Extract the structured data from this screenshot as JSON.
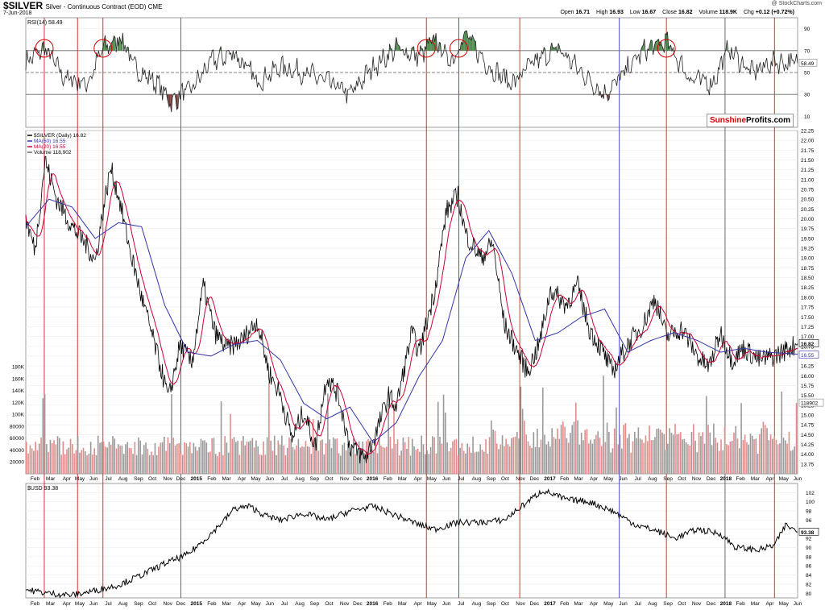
{
  "header": {
    "symbol": "$SILVER",
    "subtitle": "Silver - Continuous Contract (EOD)",
    "exchange": "CME",
    "date": "7-Jun-2018",
    "source": "@ StockCharts.com",
    "open_label": "Open",
    "open": "16.71",
    "high_label": "High",
    "high": "16.93",
    "low_label": "Low",
    "low": "16.67",
    "close_label": "Close",
    "close": "16.82",
    "volume_label": "Volume",
    "volume": "118.9K",
    "chg_label": "Chg",
    "chg": "+0.12 (+0.72%)"
  },
  "logo": {
    "part1": "Sunshine",
    "part2": "Profits.com"
  },
  "colors": {
    "price": "#000000",
    "ma20": "#cc0033",
    "ma50": "#3333aa",
    "volume_up": "#999999",
    "volume_down": "#e58a8a",
    "vline_red": "#d00000",
    "vline_blue": "#2222cc",
    "vline_black": "#444444",
    "rsi_over": "#4e8a4e",
    "rsi_under": "#7a3e3e"
  },
  "chart_data": [
    {
      "type": "line",
      "panel": "RSI",
      "label": "RSI(14) 58.49",
      "current": 58.49,
      "ylim": [
        0,
        100
      ],
      "ticks": [
        10,
        30,
        50,
        70,
        90
      ],
      "reference_lines": [
        30,
        50,
        70
      ],
      "points": [
        [
          0,
          60
        ],
        [
          0.025,
          72
        ],
        [
          0.05,
          45
        ],
        [
          0.08,
          40
        ],
        [
          0.1,
          72
        ],
        [
          0.125,
          82
        ],
        [
          0.14,
          55
        ],
        [
          0.17,
          40
        ],
        [
          0.19,
          22
        ],
        [
          0.2,
          30
        ],
        [
          0.215,
          35
        ],
        [
          0.24,
          60
        ],
        [
          0.27,
          68
        ],
        [
          0.3,
          42
        ],
        [
          0.33,
          55
        ],
        [
          0.36,
          50
        ],
        [
          0.39,
          42
        ],
        [
          0.42,
          30
        ],
        [
          0.45,
          55
        ],
        [
          0.48,
          72
        ],
        [
          0.51,
          65
        ],
        [
          0.53,
          80
        ],
        [
          0.55,
          60
        ],
        [
          0.57,
          85
        ],
        [
          0.6,
          55
        ],
        [
          0.63,
          40
        ],
        [
          0.66,
          60
        ],
        [
          0.69,
          72
        ],
        [
          0.72,
          50
        ],
        [
          0.75,
          30
        ],
        [
          0.77,
          45
        ],
        [
          0.8,
          70
        ],
        [
          0.83,
          78
        ],
        [
          0.86,
          45
        ],
        [
          0.89,
          40
        ],
        [
          0.91,
          72
        ],
        [
          0.94,
          50
        ],
        [
          0.97,
          60
        ],
        [
          1,
          58.49
        ]
      ]
    },
    {
      "type": "line",
      "panel": "Price",
      "series": [
        {
          "name": "$SILVER (Daily) 16.82",
          "last": 16.82
        },
        {
          "name": "MA(50) 16.55",
          "last": 16.55
        },
        {
          "name": "MA(20) 16.55",
          "last": 16.55
        },
        {
          "name": "Volume 118,902",
          "last": 118902
        }
      ],
      "ylim": [
        13.5,
        22.25
      ],
      "ticks": [
        "13.75",
        "14.00",
        "14.25",
        "14.50",
        "14.75",
        "15.00",
        "15.25",
        "15.50",
        "15.75",
        "16.00",
        "16.25",
        "16.50",
        "16.75",
        "17.00",
        "17.25",
        "17.50",
        "17.75",
        "18.00",
        "18.25",
        "18.50",
        "18.75",
        "19.00",
        "19.25",
        "19.50",
        "19.75",
        "20.00",
        "20.25",
        "20.50",
        "20.75",
        "21.00",
        "21.25",
        "21.50",
        "21.75",
        "22.00",
        "22.25"
      ],
      "price_points": [
        [
          0,
          20.0
        ],
        [
          0.012,
          19.2
        ],
        [
          0.025,
          21.5
        ],
        [
          0.04,
          20.5
        ],
        [
          0.06,
          19.8
        ],
        [
          0.08,
          19.3
        ],
        [
          0.09,
          18.9
        ],
        [
          0.1,
          20.2
        ],
        [
          0.11,
          21.3
        ],
        [
          0.12,
          20.6
        ],
        [
          0.135,
          19.2
        ],
        [
          0.15,
          18.0
        ],
        [
          0.16,
          17.3
        ],
        [
          0.175,
          16.2
        ],
        [
          0.185,
          15.4
        ],
        [
          0.2,
          16.8
        ],
        [
          0.215,
          16.3
        ],
        [
          0.23,
          18.3
        ],
        [
          0.245,
          17.1
        ],
        [
          0.26,
          16.7
        ],
        [
          0.28,
          16.9
        ],
        [
          0.3,
          17.4
        ],
        [
          0.315,
          16.1
        ],
        [
          0.33,
          15.5
        ],
        [
          0.345,
          14.4
        ],
        [
          0.36,
          15.1
        ],
        [
          0.375,
          14.2
        ],
        [
          0.39,
          16.0
        ],
        [
          0.405,
          15.5
        ],
        [
          0.42,
          14.2
        ],
        [
          0.44,
          13.9
        ],
        [
          0.455,
          14.6
        ],
        [
          0.47,
          15.5
        ],
        [
          0.48,
          15.2
        ],
        [
          0.5,
          17.1
        ],
        [
          0.51,
          16.6
        ],
        [
          0.53,
          18.2
        ],
        [
          0.545,
          20.2
        ],
        [
          0.56,
          20.6
        ],
        [
          0.57,
          19.6
        ],
        [
          0.59,
          19.0
        ],
        [
          0.605,
          19.4
        ],
        [
          0.62,
          17.3
        ],
        [
          0.635,
          16.7
        ],
        [
          0.65,
          16.1
        ],
        [
          0.665,
          16.8
        ],
        [
          0.68,
          18.2
        ],
        [
          0.7,
          17.8
        ],
        [
          0.715,
          18.3
        ],
        [
          0.73,
          17.2
        ],
        [
          0.745,
          16.7
        ],
        [
          0.76,
          16.1
        ],
        [
          0.78,
          16.8
        ],
        [
          0.8,
          17.3
        ],
        [
          0.815,
          18.0
        ],
        [
          0.83,
          17.0
        ],
        [
          0.85,
          17.2
        ],
        [
          0.87,
          16.5
        ],
        [
          0.885,
          16.2
        ],
        [
          0.9,
          17.1
        ],
        [
          0.915,
          16.4
        ],
        [
          0.93,
          16.7
        ],
        [
          0.95,
          16.4
        ],
        [
          0.97,
          16.5
        ],
        [
          1,
          16.82
        ]
      ],
      "ma50_points": [
        [
          0,
          19.8
        ],
        [
          0.03,
          20.5
        ],
        [
          0.06,
          20.3
        ],
        [
          0.09,
          19.5
        ],
        [
          0.12,
          19.9
        ],
        [
          0.15,
          19.8
        ],
        [
          0.18,
          17.8
        ],
        [
          0.21,
          16.6
        ],
        [
          0.24,
          16.5
        ],
        [
          0.27,
          16.8
        ],
        [
          0.3,
          16.9
        ],
        [
          0.33,
          16.4
        ],
        [
          0.36,
          15.3
        ],
        [
          0.39,
          14.9
        ],
        [
          0.42,
          15.2
        ],
        [
          0.45,
          14.3
        ],
        [
          0.48,
          14.8
        ],
        [
          0.51,
          16.0
        ],
        [
          0.54,
          16.9
        ],
        [
          0.57,
          19.0
        ],
        [
          0.6,
          19.7
        ],
        [
          0.63,
          18.6
        ],
        [
          0.66,
          16.9
        ],
        [
          0.69,
          17.1
        ],
        [
          0.72,
          17.5
        ],
        [
          0.75,
          17.7
        ],
        [
          0.78,
          16.6
        ],
        [
          0.81,
          16.9
        ],
        [
          0.84,
          17.1
        ],
        [
          0.87,
          16.9
        ],
        [
          0.9,
          16.6
        ],
        [
          0.93,
          16.7
        ],
        [
          0.96,
          16.6
        ],
        [
          1,
          16.55
        ]
      ]
    },
    {
      "type": "bar",
      "panel": "Volume",
      "ylim": [
        0,
        180000
      ],
      "ticks": [
        "20000",
        "40000",
        "60000",
        "80000",
        "100K",
        "120K",
        "140K",
        "160K",
        "180K"
      ],
      "last": 118902
    },
    {
      "type": "line",
      "panel": "USD",
      "label": "$USD 93.38",
      "current": 93.38,
      "ylim": [
        79,
        104
      ],
      "ticks": [
        "80",
        "82",
        "84",
        "86",
        "88",
        "90",
        "92",
        "94",
        "96",
        "98",
        "100",
        "102"
      ],
      "points": [
        [
          0,
          80.8
        ],
        [
          0.03,
          80.0
        ],
        [
          0.06,
          79.6
        ],
        [
          0.09,
          80.6
        ],
        [
          0.12,
          81.8
        ],
        [
          0.15,
          84.0
        ],
        [
          0.18,
          86.5
        ],
        [
          0.21,
          88.5
        ],
        [
          0.24,
          93.0
        ],
        [
          0.26,
          96.5
        ],
        [
          0.27,
          98.5
        ],
        [
          0.29,
          99.0
        ],
        [
          0.31,
          97.0
        ],
        [
          0.33,
          96.0
        ],
        [
          0.36,
          97.5
        ],
        [
          0.39,
          96.0
        ],
        [
          0.42,
          98.0
        ],
        [
          0.45,
          99.0
        ],
        [
          0.48,
          97.0
        ],
        [
          0.51,
          95.0
        ],
        [
          0.53,
          94.0
        ],
        [
          0.56,
          95.5
        ],
        [
          0.59,
          95.5
        ],
        [
          0.62,
          96.0
        ],
        [
          0.65,
          100.0
        ],
        [
          0.67,
          102.5
        ],
        [
          0.7,
          100.5
        ],
        [
          0.73,
          100.0
        ],
        [
          0.76,
          98.0
        ],
        [
          0.79,
          95.0
        ],
        [
          0.82,
          93.5
        ],
        [
          0.84,
          92.0
        ],
        [
          0.87,
          94.0
        ],
        [
          0.9,
          93.0
        ],
        [
          0.92,
          90.0
        ],
        [
          0.95,
          89.5
        ],
        [
          0.97,
          90.5
        ],
        [
          0.985,
          95.0
        ],
        [
          1,
          93.38
        ]
      ]
    }
  ],
  "x_axis": {
    "labels": [
      {
        "t": "Feb",
        "p": 0.012
      },
      {
        "t": "Mar",
        "p": 0.032
      },
      {
        "t": "Apr",
        "p": 0.053
      },
      {
        "t": "May",
        "p": 0.07
      },
      {
        "t": "Jun",
        "p": 0.088
      },
      {
        "t": "Jul",
        "p": 0.107
      },
      {
        "t": "Aug",
        "p": 0.126
      },
      {
        "t": "Sep",
        "p": 0.146
      },
      {
        "t": "Oct",
        "p": 0.164
      },
      {
        "t": "Nov",
        "p": 0.184
      },
      {
        "t": "Dec",
        "p": 0.201
      },
      {
        "t": "2015",
        "p": 0.221,
        "bold": true
      },
      {
        "t": "Feb",
        "p": 0.241
      },
      {
        "t": "Mar",
        "p": 0.26
      },
      {
        "t": "Apr",
        "p": 0.28
      },
      {
        "t": "May",
        "p": 0.298
      },
      {
        "t": "Jun",
        "p": 0.316
      },
      {
        "t": "Jul",
        "p": 0.335
      },
      {
        "t": "Aug",
        "p": 0.355
      },
      {
        "t": "Sep",
        "p": 0.374
      },
      {
        "t": "Oct",
        "p": 0.393
      },
      {
        "t": "Nov",
        "p": 0.413
      },
      {
        "t": "Dec",
        "p": 0.43
      },
      {
        "t": "2016",
        "p": 0.449,
        "bold": true
      },
      {
        "t": "Feb",
        "p": 0.469
      },
      {
        "t": "Mar",
        "p": 0.488
      },
      {
        "t": "Apr",
        "p": 0.508
      },
      {
        "t": "May",
        "p": 0.526
      },
      {
        "t": "Jun",
        "p": 0.545
      },
      {
        "t": "Jul",
        "p": 0.564
      },
      {
        "t": "Aug",
        "p": 0.584
      },
      {
        "t": "Sep",
        "p": 0.603
      },
      {
        "t": "Oct",
        "p": 0.621
      },
      {
        "t": "Nov",
        "p": 0.641
      },
      {
        "t": "Dec",
        "p": 0.659
      },
      {
        "t": "2017",
        "p": 0.679,
        "bold": true
      },
      {
        "t": "Feb",
        "p": 0.698
      },
      {
        "t": "Mar",
        "p": 0.716
      },
      {
        "t": "Apr",
        "p": 0.736
      },
      {
        "t": "May",
        "p": 0.755
      },
      {
        "t": "Jun",
        "p": 0.774
      },
      {
        "t": "Jul",
        "p": 0.793
      },
      {
        "t": "Aug",
        "p": 0.812
      },
      {
        "t": "Sep",
        "p": 0.832
      },
      {
        "t": "Oct",
        "p": 0.85
      },
      {
        "t": "Nov",
        "p": 0.869
      },
      {
        "t": "Dec",
        "p": 0.888
      },
      {
        "t": "2018",
        "p": 0.907,
        "bold": true
      },
      {
        "t": "Feb",
        "p": 0.926
      },
      {
        "t": "Mar",
        "p": 0.945
      },
      {
        "t": "Apr",
        "p": 0.964
      },
      {
        "t": "May",
        "p": 0.982
      },
      {
        "t": "Jun",
        "p": 1.0
      }
    ],
    "vlines": [
      {
        "p": 0.024,
        "c": "vline_red"
      },
      {
        "p": 0.067,
        "c": "vline_red"
      },
      {
        "p": 0.1,
        "c": "vline_red"
      },
      {
        "p": 0.201,
        "c": "vline_black"
      },
      {
        "p": 0.519,
        "c": "vline_red"
      },
      {
        "p": 0.561,
        "c": "vline_red"
      },
      {
        "p": 0.64,
        "c": "vline_red"
      },
      {
        "p": 0.769,
        "c": "vline_blue"
      },
      {
        "p": 0.83,
        "c": "vline_red"
      },
      {
        "p": 0.906,
        "c": "vline_black"
      },
      {
        "p": 0.97,
        "c": "vline_red"
      }
    ],
    "circles": [
      0.024,
      0.1,
      0.519,
      0.561,
      0.83
    ]
  }
}
